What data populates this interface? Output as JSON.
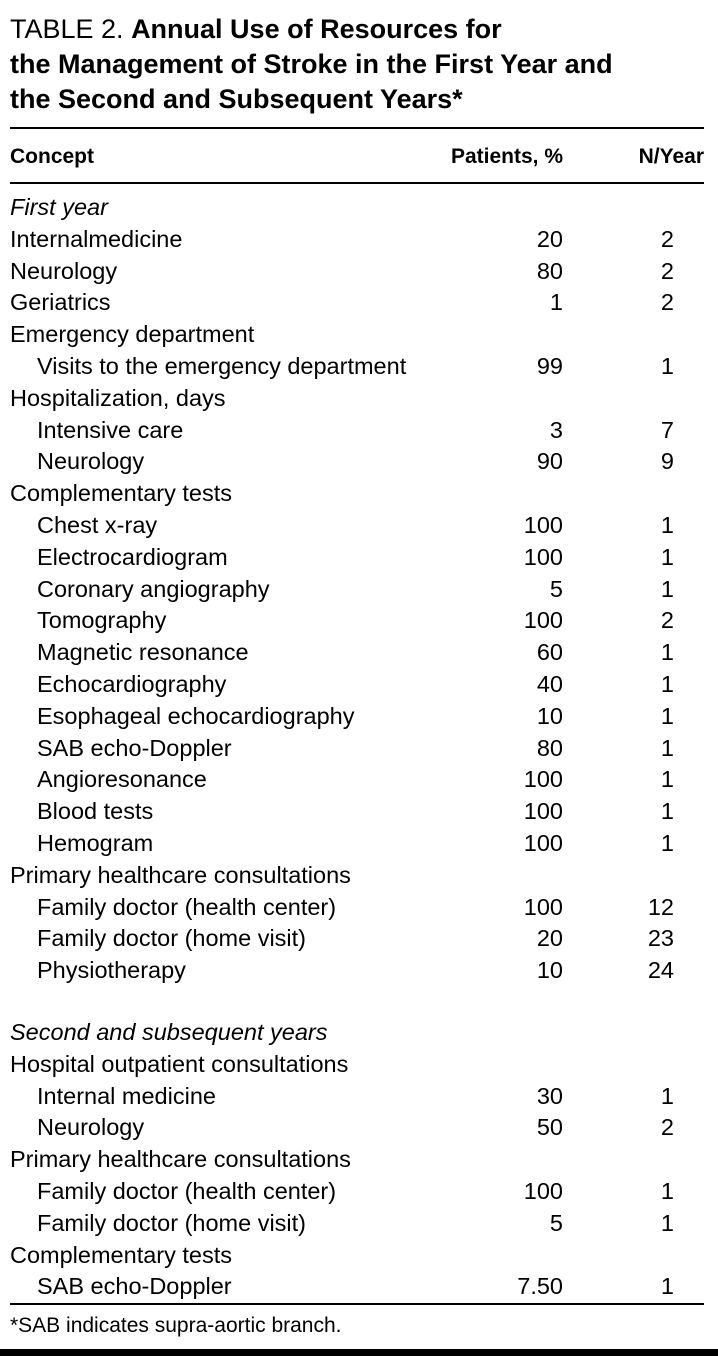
{
  "heading": {
    "label": "TABLE 2. ",
    "title": "Annual Use of Resources for\nthe Management of Stroke in the First Year and\nthe Second and Subsequent Years*"
  },
  "table": {
    "columns": [
      "Concept",
      "Patients, %",
      "N/Year"
    ],
    "rows": [
      {
        "t": "First year",
        "cls": "section",
        "p": "",
        "n": ""
      },
      {
        "t": "Internalmedicine",
        "p": "20",
        "n": "2"
      },
      {
        "t": "Neurology",
        "p": "80",
        "n": "2"
      },
      {
        "t": "Geriatrics",
        "p": "1",
        "n": "2"
      },
      {
        "t": "Emergency department",
        "p": "",
        "n": ""
      },
      {
        "t": "Visits to the emergency department",
        "ind": 1,
        "p": "99",
        "n": "1"
      },
      {
        "t": "Hospitalization, days",
        "p": "",
        "n": ""
      },
      {
        "t": "Intensive care",
        "ind": 1,
        "p": "3",
        "n": "7"
      },
      {
        "t": "Neurology",
        "ind": 1,
        "p": "90",
        "n": "9"
      },
      {
        "t": "Complementary tests",
        "p": "",
        "n": ""
      },
      {
        "t": "Chest x-ray",
        "ind": 1,
        "p": "100",
        "n": "1"
      },
      {
        "t": "Electrocardiogram",
        "ind": 1,
        "p": "100",
        "n": "1"
      },
      {
        "t": "Coronary angiography",
        "ind": 1,
        "p": "5",
        "n": "1"
      },
      {
        "t": "Tomography",
        "ind": 1,
        "p": "100",
        "n": "2"
      },
      {
        "t": "Magnetic resonance",
        "ind": 1,
        "p": "60",
        "n": "1"
      },
      {
        "t": "Echocardiography",
        "ind": 1,
        "p": "40",
        "n": "1"
      },
      {
        "t": "Esophageal echocardiography",
        "ind": 1,
        "p": "10",
        "n": "1"
      },
      {
        "t": "SAB echo-Doppler",
        "ind": 1,
        "p": "80",
        "n": "1"
      },
      {
        "t": "Angioresonance",
        "ind": 1,
        "p": "100",
        "n": "1"
      },
      {
        "t": "Blood tests",
        "ind": 1,
        "p": "100",
        "n": "1"
      },
      {
        "t": "Hemogram",
        "ind": 1,
        "p": "100",
        "n": "1"
      },
      {
        "t": "Primary healthcare consultations",
        "p": "",
        "n": ""
      },
      {
        "t": "Family doctor (health center)",
        "ind": 1,
        "p": "100",
        "n": "12"
      },
      {
        "t": "Family doctor (home visit)",
        "ind": 1,
        "p": "20",
        "n": "23"
      },
      {
        "t": "Physiotherapy",
        "ind": 1,
        "p": "10",
        "n": "24"
      },
      {
        "t": "Second and subsequent years",
        "cls": "section",
        "gap": true,
        "p": "",
        "n": ""
      },
      {
        "t": "Hospital outpatient consultations",
        "p": "",
        "n": ""
      },
      {
        "t": "Internal medicine",
        "ind": 1,
        "p": "30",
        "n": "1"
      },
      {
        "t": "Neurology",
        "ind": 1,
        "p": "50",
        "n": "2"
      },
      {
        "t": "Primary healthcare consultations",
        "p": "",
        "n": ""
      },
      {
        "t": "Family doctor (health center)",
        "ind": 1,
        "p": "100",
        "n": "1"
      },
      {
        "t": "Family doctor (home visit)",
        "ind": 1,
        "p": "5",
        "n": "1"
      },
      {
        "t": "Complementary tests",
        "p": "",
        "n": ""
      },
      {
        "t": "SAB echo-Doppler",
        "ind": 1,
        "p": "7.50",
        "n": "1"
      }
    ],
    "footnote": "*SAB indicates supra-aortic branch."
  },
  "colors": {
    "text": "#000000",
    "background": "#ffffff",
    "rule": "#000000"
  }
}
